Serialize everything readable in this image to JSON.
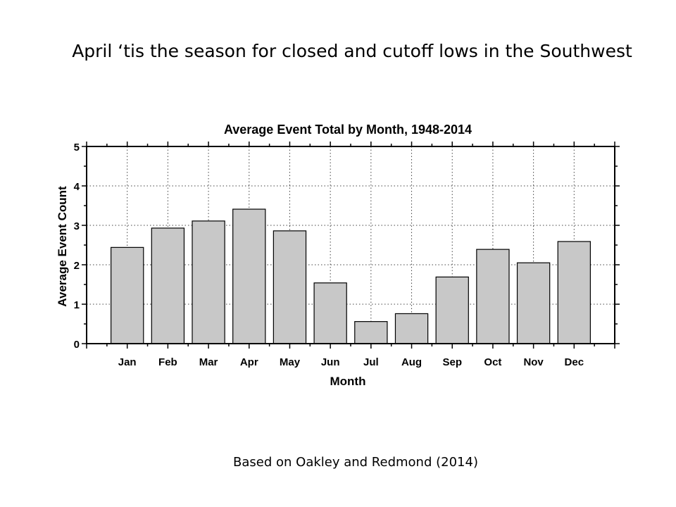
{
  "slide": {
    "title": "April ‘tis the season for closed and cutoff lows in the Southwest",
    "caption": "Based on Oakley and Redmond (2014)"
  },
  "chart_data": {
    "type": "bar",
    "title": "Average Event Total by Month, 1948-2014",
    "xlabel": "Month",
    "ylabel": "Average Event Count",
    "categories": [
      "Jan",
      "Feb",
      "Mar",
      "Apr",
      "May",
      "Jun",
      "Jul",
      "Aug",
      "Sep",
      "Oct",
      "Nov",
      "Dec"
    ],
    "values": [
      2.44,
      2.93,
      3.11,
      3.41,
      2.86,
      1.54,
      0.56,
      0.76,
      1.69,
      2.39,
      2.05,
      2.59
    ],
    "ylim": [
      0,
      5
    ],
    "yticks": [
      "0",
      "1",
      "2",
      "3",
      "4",
      "5"
    ],
    "grid": true,
    "bar_color": "#c8c8c8"
  }
}
